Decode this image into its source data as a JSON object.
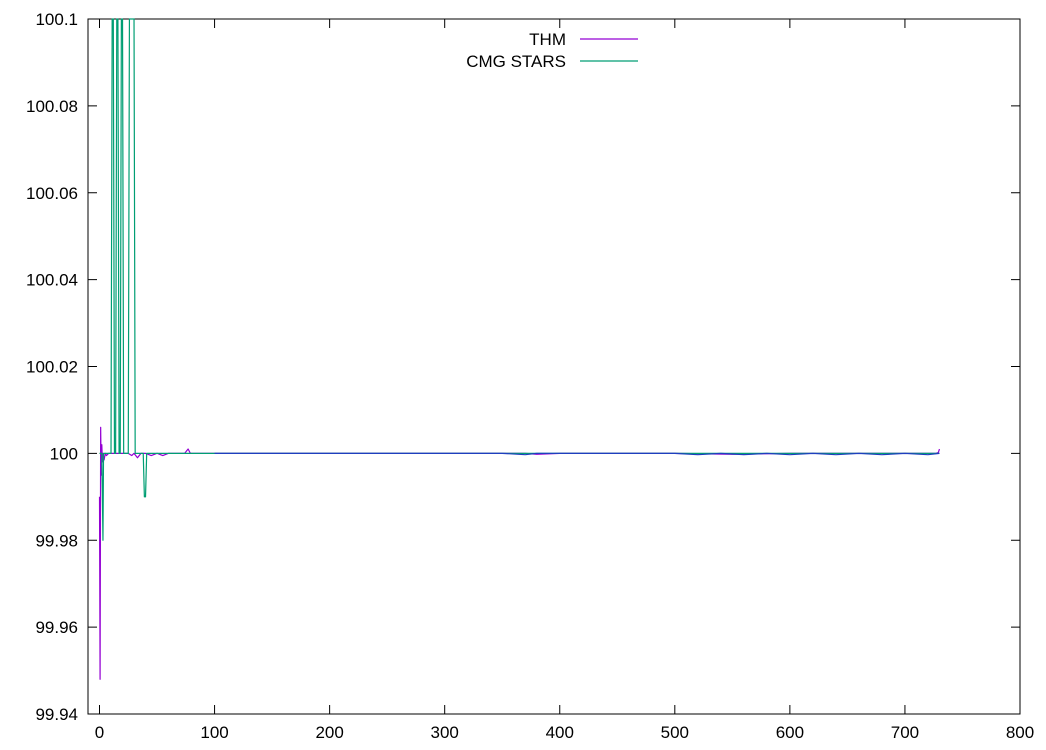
{
  "chart_data": {
    "type": "line",
    "title": "",
    "xlabel": "",
    "ylabel": "",
    "xlim": [
      -10,
      800
    ],
    "ylim": [
      99.94,
      100.1
    ],
    "x_ticks": [
      0,
      100,
      200,
      300,
      400,
      500,
      600,
      700,
      800
    ],
    "x_tick_labels": [
      "0",
      "100",
      "200",
      "300",
      "400",
      "500",
      "600",
      "700",
      "800"
    ],
    "y_ticks": [
      99.94,
      99.96,
      99.98,
      100,
      100.02,
      100.04,
      100.06,
      100.08,
      100.1
    ],
    "y_tick_labels": [
      "99.94",
      "99.96",
      "99.98",
      "100",
      "100.02",
      "100.04",
      "100.06",
      "100.08",
      "100.1"
    ],
    "grid": false,
    "legend_position": "top-center",
    "series": [
      {
        "name": "THM",
        "color": "#9400d3",
        "x": [
          0,
          0.5,
          1,
          1.5,
          2,
          2.5,
          3,
          4,
          5,
          6,
          8,
          10,
          15,
          20,
          25,
          28,
          30,
          33,
          36,
          40,
          45,
          50,
          55,
          60,
          65,
          70,
          74,
          77,
          79,
          82,
          90,
          100,
          150,
          200,
          300,
          370,
          380,
          400,
          500,
          550,
          600,
          650,
          700,
          720,
          727,
          729,
          730
        ],
        "y": [
          99.99,
          99.948,
          100.006,
          99.995,
          100.002,
          99.998,
          100.0,
          99.9985,
          100.0,
          99.9995,
          100.0,
          100.0,
          100.0,
          100.0,
          100.0,
          99.9995,
          100.0,
          99.999,
          100.0,
          100.0,
          99.9995,
          100.0,
          99.9995,
          100.0,
          100.0,
          100.0,
          100.0,
          100.001,
          100.0,
          100.0,
          100.0,
          100.0,
          100.0,
          100.0,
          100.0,
          100.0,
          99.9998,
          100.0,
          100.0,
          99.9998,
          100.0,
          100.0,
          100.0,
          100.0,
          100.0,
          100.0002,
          100.001
        ]
      },
      {
        "name": "CMG STARS",
        "color": "#009e73",
        "x": [
          0,
          1,
          2,
          3,
          3.5,
          4,
          10,
          11,
          12,
          13,
          14,
          15,
          16,
          17,
          18,
          19,
          20,
          21,
          25,
          26,
          27,
          30,
          31,
          32,
          37,
          38,
          39,
          40,
          41,
          45,
          50,
          100,
          200,
          300,
          400,
          500,
          600,
          700,
          730
        ],
        "y": [
          100.0,
          100.0,
          100.0,
          99.98,
          100.0,
          100.0,
          100.0,
          100.1,
          100.1,
          100.0,
          100.0,
          100.1,
          100.1,
          100.0,
          100.0,
          100.1,
          100.1,
          100.0,
          100.0,
          100.1,
          100.1,
          100.1,
          100.0,
          100.0,
          100.0,
          100.0,
          99.99,
          99.99,
          100.0,
          100.0,
          100.0,
          100.0,
          100.0,
          100.0,
          100.0,
          100.0,
          100.0,
          100.0,
          100.0
        ]
      },
      {
        "name": "",
        "color": "#1f3fbf",
        "x": [
          100,
          200,
          300,
          350,
          370,
          380,
          400,
          450,
          500,
          520,
          540,
          560,
          580,
          600,
          620,
          640,
          660,
          680,
          700,
          720,
          730
        ],
        "y": [
          100.0,
          100.0,
          100.0,
          100.0,
          99.9997,
          100.0,
          100.0,
          100.0,
          100.0,
          99.9997,
          100.0,
          99.9997,
          100.0,
          99.9997,
          100.0,
          99.9997,
          100.0,
          99.9997,
          100.0,
          99.9997,
          100.0
        ]
      }
    ]
  }
}
